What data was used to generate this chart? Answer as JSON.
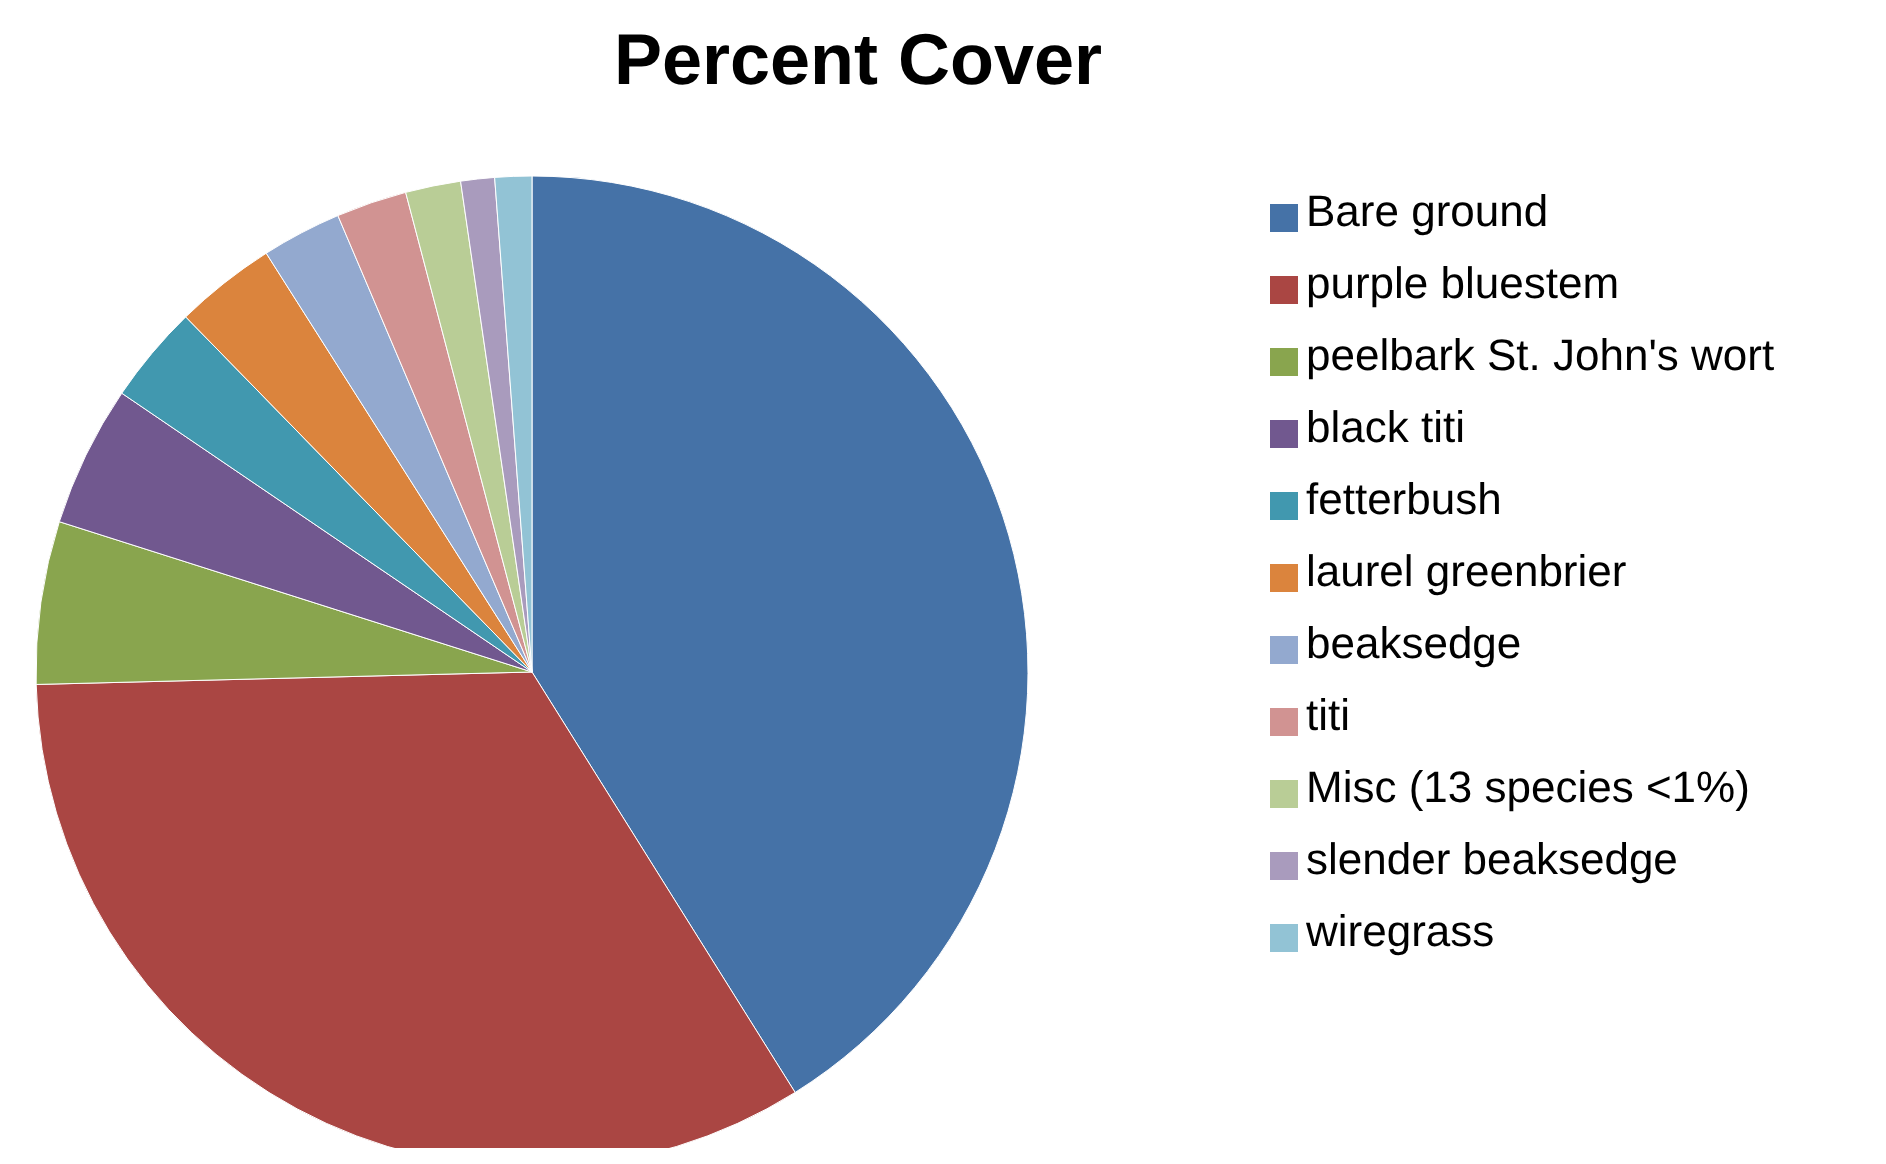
{
  "chart_data": {
    "type": "pie",
    "title": "Percent Cover",
    "categories": [
      "Bare ground",
      "purple bluestem",
      "peelbark St. John's wort",
      "black titi",
      "fetterbush",
      "laurel greenbrier",
      "beaksedge",
      "titi",
      "Misc (13 species <1%)",
      "slender beaksedge",
      "wiregrass"
    ],
    "values": [
      41.1,
      33.5,
      5.3,
      4.6,
      3.2,
      3.3,
      2.6,
      2.3,
      1.8,
      1.1,
      1.2
    ],
    "colors": [
      "#4572a7",
      "#aa4643",
      "#89a54e",
      "#71588f",
      "#4198af",
      "#db843d",
      "#93a9cf",
      "#d19392",
      "#b9cd96",
      "#a99bbd",
      "#92c3d5"
    ],
    "legend": "right"
  }
}
